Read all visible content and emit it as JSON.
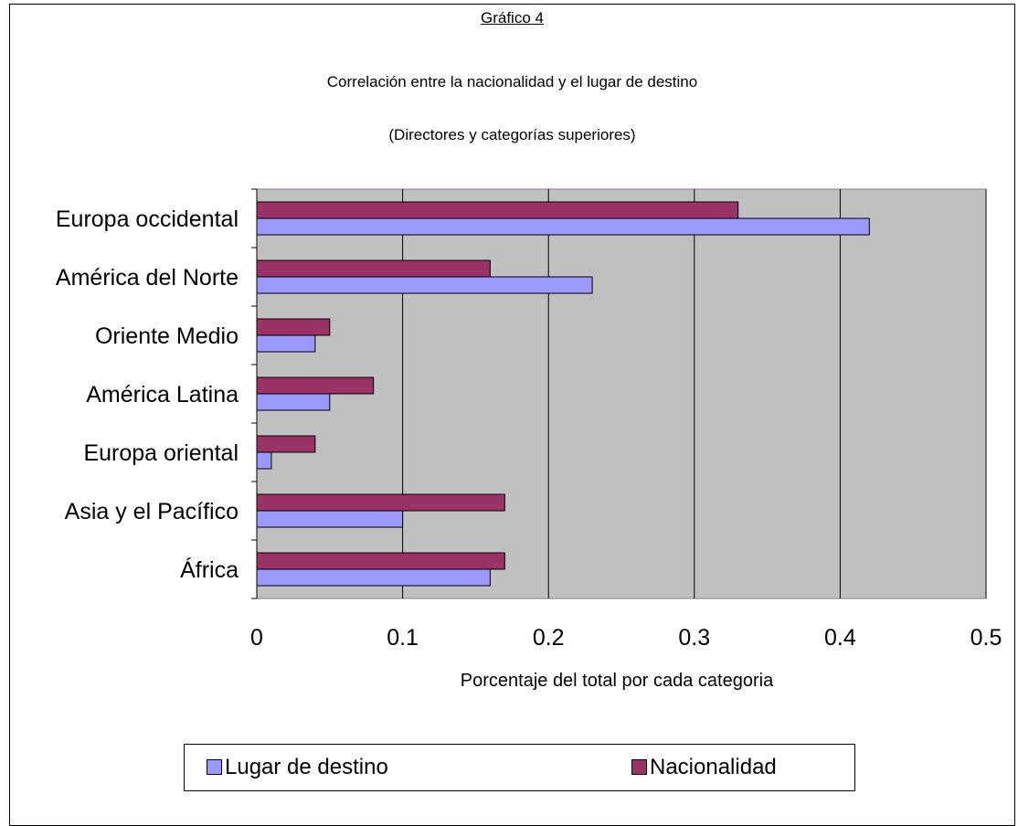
{
  "chart_data": {
    "type": "bar",
    "orientation": "horizontal",
    "title": "Gráfico 4",
    "subtitle": "Correlación entre la nacionalidad y el lugar de destino",
    "subtitle2": "(Directores y categorías superiores)",
    "xlabel": "Porcentaje del total por cada categoria",
    "ylabel": "",
    "xlim": [
      0,
      0.5
    ],
    "ticks": [
      "0",
      "0.1",
      "0.2",
      "0.3",
      "0.4",
      "0.5"
    ],
    "tick_values": [
      0,
      0.1,
      0.2,
      0.3,
      0.4,
      0.5
    ],
    "grid": true,
    "legend_position": "bottom",
    "categories": [
      "Europa occidental",
      "América del Norte",
      "Oriente Medio",
      "América Latina",
      "Europa oriental",
      "Asia y el Pacífico",
      "África"
    ],
    "series": [
      {
        "name": "Lugar de destino",
        "color": "#9999ff",
        "values": [
          0.42,
          0.23,
          0.04,
          0.05,
          0.01,
          0.1,
          0.16
        ]
      },
      {
        "name": "Nacionalidad",
        "color": "#993366",
        "values": [
          0.33,
          0.16,
          0.05,
          0.08,
          0.04,
          0.17,
          0.17
        ]
      }
    ],
    "plot_background": "#c0c0c0"
  }
}
